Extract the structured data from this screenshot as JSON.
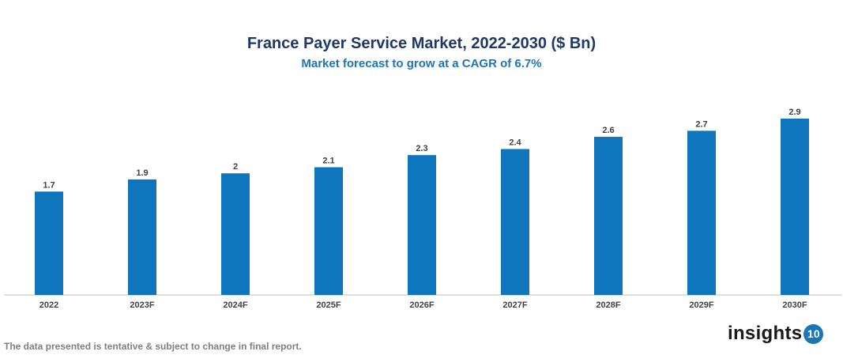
{
  "chart_data": {
    "type": "bar",
    "title": "France Payer Service Market, 2022-2030 ($ Bn)",
    "subtitle": "Market forecast to grow at a CAGR of 6.7%",
    "categories": [
      "2022",
      "2023F",
      "2024F",
      "2025F",
      "2026F",
      "2027F",
      "2028F",
      "2029F",
      "2030F"
    ],
    "values": [
      1.7,
      1.9,
      2,
      2.1,
      2.3,
      2.4,
      2.6,
      2.7,
      2.9
    ],
    "xlabel": "",
    "ylabel": "",
    "grid": false,
    "bar_color": "#0f75bc"
  },
  "footer": {
    "note": "The data presented is tentative & subject to change in final report."
  },
  "logo": {
    "text": "insights",
    "number": "10"
  }
}
